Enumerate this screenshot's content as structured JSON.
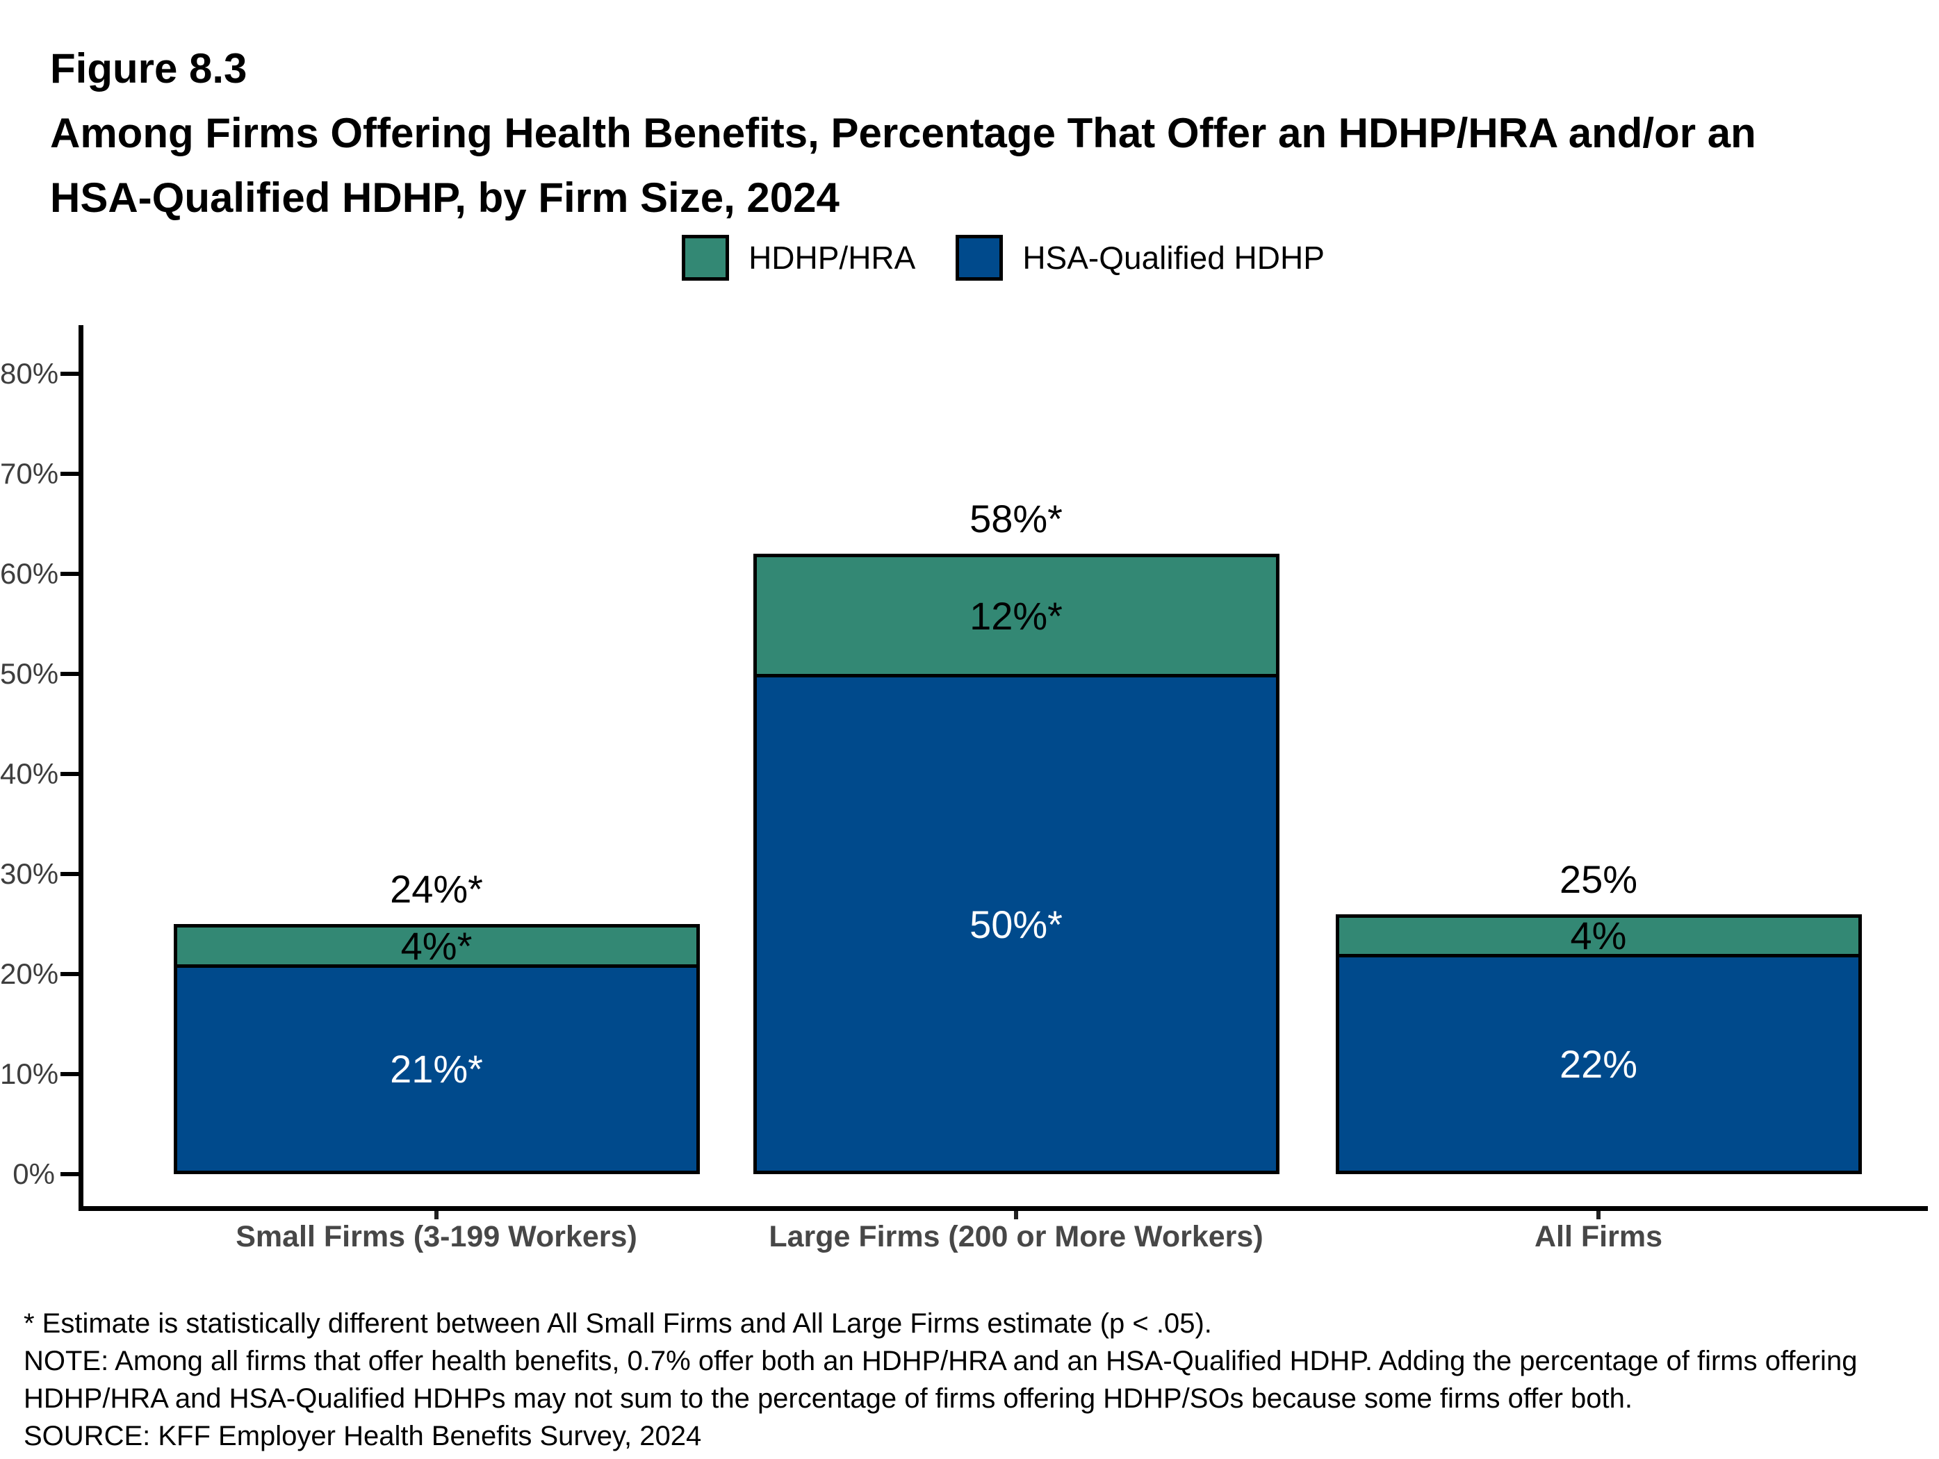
{
  "figure": {
    "label": "Figure 8.3",
    "title_line1": "Among Firms Offering Health Benefits, Percentage That Offer an HDHP/HRA and/or an",
    "title_line2": "HSA-Qualified HDHP, by Firm Size, 2024"
  },
  "legend": [
    {
      "label": "HDHP/HRA",
      "color": "#338874"
    },
    {
      "label": "HSA-Qualified HDHP",
      "color": "#004A8C"
    }
  ],
  "chart_data": {
    "type": "bar",
    "stacked": true,
    "title": "Among Firms Offering Health Benefits, Percentage That Offer an HDHP/HRA and/or an HSA-Qualified HDHP, by Firm Size, 2024",
    "categories": [
      "Small Firms (3-199 Workers)",
      "Large Firms (200 or More Workers)",
      "All Firms"
    ],
    "series": [
      {
        "name": "HSA-Qualified HDHP",
        "color": "#004A8C",
        "text_color": "#FFFFFF",
        "values": [
          21,
          50,
          22
        ],
        "data_labels": [
          "21%*",
          "50%*",
          "22%"
        ]
      },
      {
        "name": "HDHP/HRA",
        "color": "#338874",
        "text_color": "#000000",
        "values": [
          4,
          12,
          4
        ],
        "data_labels": [
          "4%*",
          "12%*",
          "4%"
        ]
      }
    ],
    "bar_total_labels": [
      "24%*",
      "58%*",
      "25%"
    ],
    "ylim": [
      0,
      80
    ],
    "ytick_step": 10,
    "ytick_labels": [
      "0%",
      "10%",
      "20%",
      "30%",
      "40%",
      "50%",
      "60%",
      "70%",
      "80%"
    ],
    "xlabel": "",
    "ylabel": "",
    "grid": false,
    "legend_position": "top"
  },
  "footnotes": [
    "* Estimate is statistically different between All Small Firms and All Large Firms estimate (p < .05).",
    "NOTE: Among all firms that offer health benefits, 0.7% offer both an HDHP/HRA and an HSA-Qualified HDHP. Adding the percentage of firms offering",
    "HDHP/HRA and HSA-Qualified HDHPs may not sum to the percentage of firms offering HDHP/SOs because some firms offer both.",
    "SOURCE: KFF Employer Health Benefits Survey, 2024"
  ]
}
